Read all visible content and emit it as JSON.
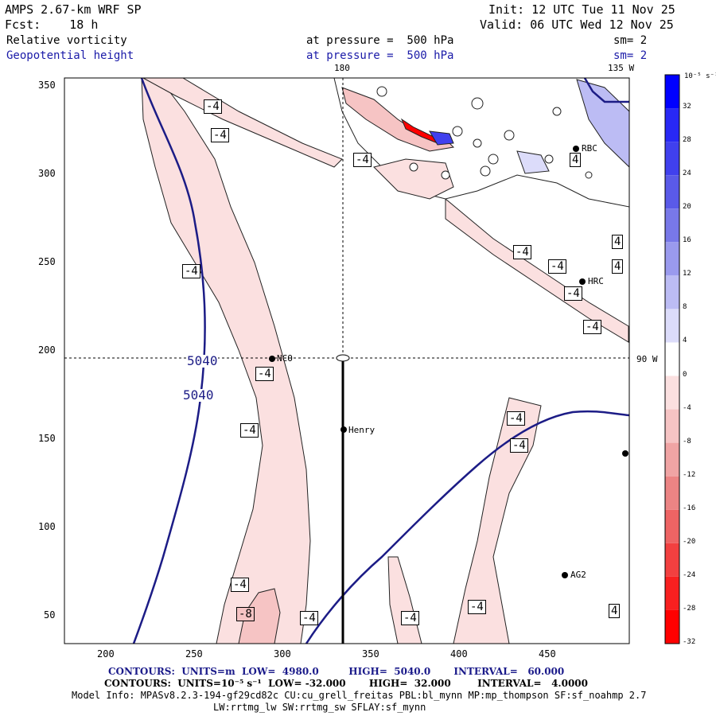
{
  "header": {
    "model": "AMPS 2.67-km WRF SP",
    "forecast": "Fcst:    18 h",
    "init": "Init: 12 UTC Tue 11 Nov 25",
    "valid": "Valid: 06 UTC Wed 12 Nov 25",
    "field1": {
      "name": "Relative vorticity",
      "level": "at pressure =  500 hPa",
      "smooth": "sm= 2"
    },
    "field2": {
      "name": "Geopotential height",
      "level": "at pressure =  500 hPa",
      "smooth": "sm= 2"
    }
  },
  "map": {
    "meridian_top_label": "180",
    "meridian_top_label2": "135 W",
    "parallel_right_label": "90 W",
    "x_ticks": [
      "200",
      "250",
      "300",
      "350",
      "400",
      "450"
    ],
    "y_ticks": [
      "350",
      "300",
      "250",
      "200",
      "150",
      "100",
      "50"
    ],
    "stations": [
      {
        "name": "NCO"
      },
      {
        "name": "Henry"
      },
      {
        "name": "HRC"
      },
      {
        "name": "AG2"
      },
      {
        "name": "RBC"
      }
    ],
    "height_labels": [
      "5040",
      "5040"
    ],
    "vort_labels": [
      "-4",
      "-4",
      "-4",
      "-4",
      "-4",
      "-4",
      "-4",
      "-4",
      "-4",
      "-4",
      "-4",
      "-4",
      "-4",
      "-4",
      "-4",
      "-8",
      "-4",
      "-4",
      "4",
      "4",
      "4",
      "4"
    ]
  },
  "colorbar": {
    "units": "10⁻⁵ s⁻¹",
    "ticks": [
      "32",
      "28",
      "24",
      "20",
      "16",
      "12",
      "8",
      "4",
      "0",
      "-4",
      "-8",
      "-12",
      "-16",
      "-20",
      "-24",
      "-28",
      "-32"
    ],
    "colors": [
      "#0000ff",
      "#2828f5",
      "#4040ee",
      "#5a5ae8",
      "#7878e8",
      "#9a9aee",
      "#bcbcf4",
      "#dcdcfa",
      "#ffffff",
      "#fbe0e0",
      "#f6c4c4",
      "#f0a4a4",
      "#ec8484",
      "#ee6464",
      "#f24040",
      "#f82020",
      "#ff0000"
    ]
  },
  "footer": {
    "line1": "CONTOURS:  UNITS=m  LOW=  4980.0         HIGH=  5040.0       INTERVAL=   60.000",
    "line2": "CONTOURS:  UNITS=10⁻⁵ s⁻¹  LOW= -32.000       HIGH=  32.000        INTERVAL=   4.0000",
    "line3": "Model Info: MPASv8.2.3-194-gf29cd82c CU:cu_grell_freitas PBL:bl_mynn MP:mp_thompson SF:sf_noahmp 2.7",
    "line4": "LW:rrtmg_lw SW:rrtmg_sw SFLAY:sf_mynn"
  }
}
